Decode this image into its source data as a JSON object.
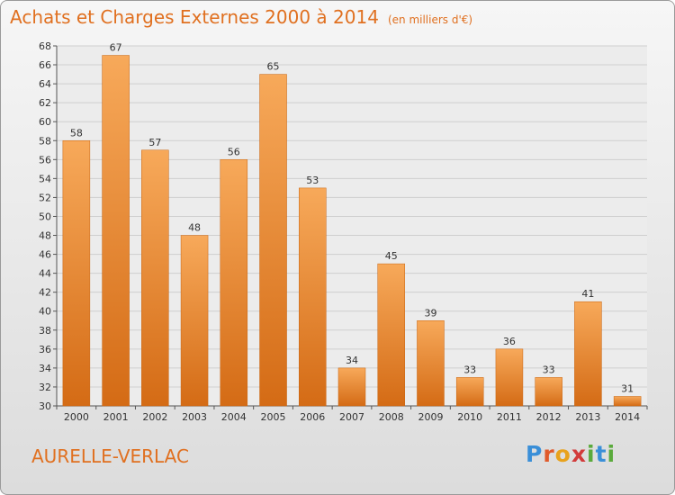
{
  "header": {
    "title": "Achats et Charges Externes 2000 à 2014",
    "subtitle": "(en milliers d'€)"
  },
  "footer": {
    "commune": "AURELLE-VERLAC",
    "logo_letters": [
      "P",
      "r",
      "o",
      "x",
      "i",
      "t",
      "i"
    ],
    "logo_colors": [
      "#3a8fd8",
      "#e05a2a",
      "#e8a21c",
      "#d23b3b",
      "#5aaa3c",
      "#3a8fd8",
      "#5aaa3c"
    ]
  },
  "colors": {
    "accent": "#e07020",
    "bar_top": "#f7a95a",
    "bar_bottom": "#d46b15"
  },
  "chart_data": {
    "type": "bar",
    "categories": [
      "2000",
      "2001",
      "2002",
      "2003",
      "2004",
      "2005",
      "2006",
      "2007",
      "2008",
      "2009",
      "2010",
      "2011",
      "2012",
      "2013",
      "2014"
    ],
    "values": [
      58,
      67,
      57,
      48,
      56,
      65,
      53,
      34,
      45,
      39,
      33,
      36,
      33,
      41,
      31
    ],
    "title": "Achats et Charges Externes 2000 à 2014",
    "ylim": [
      30,
      68
    ],
    "yticks": [
      30,
      32,
      34,
      36,
      38,
      40,
      42,
      44,
      46,
      48,
      50,
      52,
      54,
      56,
      58,
      60,
      62,
      64,
      66,
      68
    ],
    "grid": true
  }
}
